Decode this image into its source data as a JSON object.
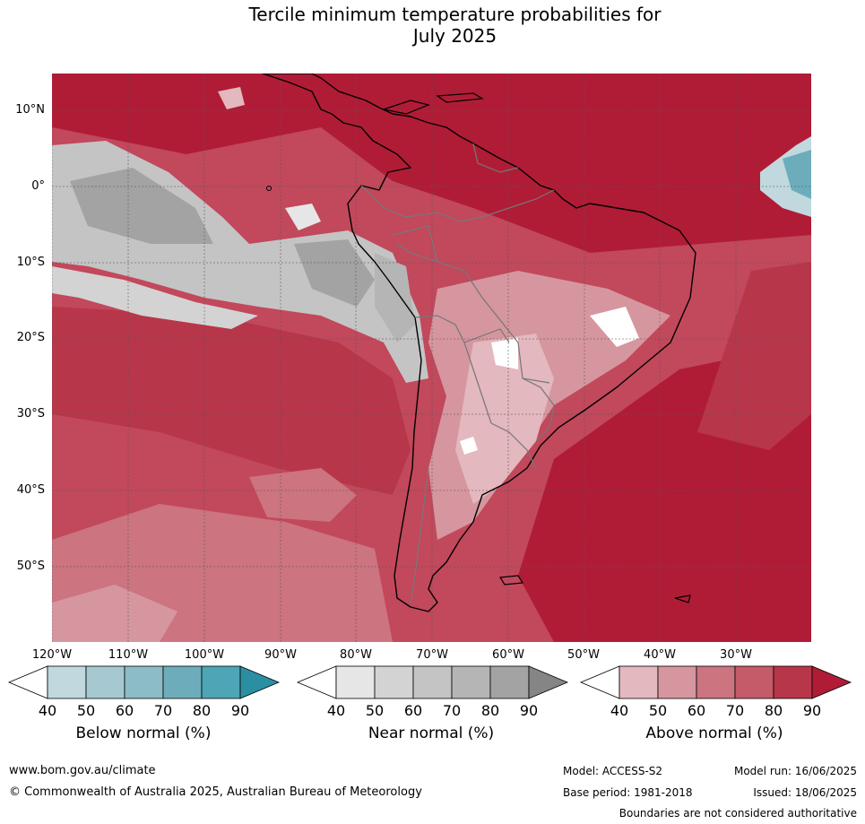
{
  "title": {
    "line1": "Tercile minimum temperature probabilities for",
    "line2": "July 2025"
  },
  "map": {
    "lat_labels": [
      "10°N",
      "0°",
      "10°S",
      "20°S",
      "30°S",
      "40°S",
      "50°S"
    ],
    "lon_labels": [
      "120°W",
      "110°W",
      "100°W",
      "90°W",
      "80°W",
      "70°W",
      "60°W",
      "50°W",
      "40°W",
      "30°W"
    ]
  },
  "legends": [
    {
      "title": "Below normal (%)",
      "ticks": [
        "40",
        "50",
        "60",
        "70",
        "80",
        "90"
      ],
      "colors": [
        "#ffffff",
        "#c0d8de",
        "#a6c8d0",
        "#8cbcc6",
        "#6dadbb",
        "#4da5b5",
        "#2b8fa3"
      ]
    },
    {
      "title": "Near normal (%)",
      "ticks": [
        "40",
        "50",
        "60",
        "70",
        "80",
        "90"
      ],
      "colors": [
        "#ffffff",
        "#e6e6e6",
        "#d3d3d3",
        "#c4c4c4",
        "#b5b5b5",
        "#a3a3a3",
        "#858585"
      ]
    },
    {
      "title": "Above normal (%)",
      "ticks": [
        "40",
        "50",
        "60",
        "70",
        "80",
        "90"
      ],
      "colors": [
        "#ffffff",
        "#e3b8be",
        "#d6969f",
        "#cc7480",
        "#c55a68",
        "#b8364a",
        "#b01c36"
      ]
    }
  ],
  "footer": {
    "website": "www.bom.gov.au/climate",
    "copyright": "© Commonwealth of Australia 2025, Australian Bureau of Meteorology",
    "model": "Model: ACCESS-S2",
    "base_period": "Base period: 1981-2018",
    "model_run": "Model run: 16/06/2025",
    "issued": "Issued: 18/06/2025",
    "disclaimer": "Boundaries are not considered authoritative"
  }
}
